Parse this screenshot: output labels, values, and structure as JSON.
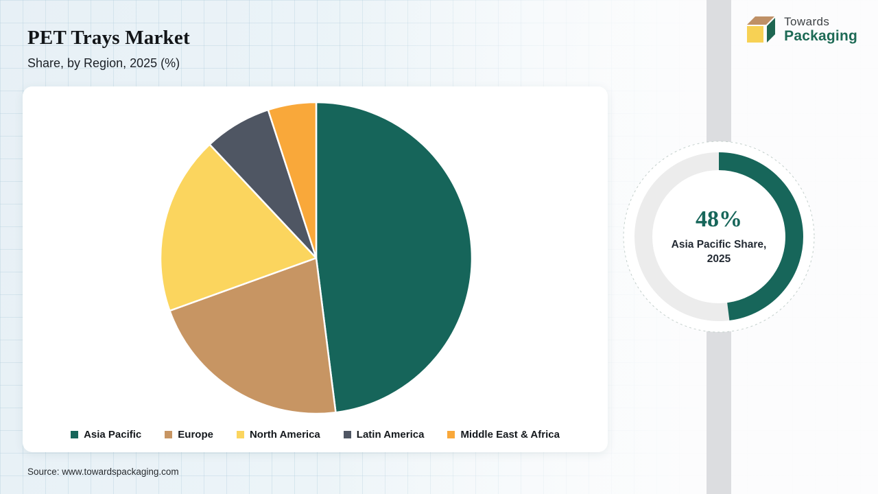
{
  "header": {
    "title": "PET Trays Market",
    "subtitle": "Share, by Region, 2025 (%)"
  },
  "logo": {
    "line1": "Towards",
    "line2": "Packaging",
    "box_colors": {
      "top": "#bf9066",
      "front": "#f7d154",
      "side": "#1e6651"
    }
  },
  "chart_data": {
    "type": "pie",
    "title": "PET Trays Market — Share, by Region, 2025 (%)",
    "labels": [
      "Asia Pacific",
      "Europe",
      "North America",
      "Latin America",
      "Middle East & Africa"
    ],
    "values": [
      48,
      21.5,
      18.5,
      7,
      5
    ],
    "colors": [
      "#16655a",
      "#c79563",
      "#fbd55e",
      "#4f5663",
      "#f9a83a"
    ],
    "start_angle_deg": 0,
    "direction": "clockwise",
    "legend_position": "bottom",
    "separator_color": "#ffffff"
  },
  "highlight_donut": {
    "value": 48,
    "value_label": "48%",
    "caption_line1": "Asia Pacific Share,",
    "caption_line2": "2025",
    "arc_color": "#17665a",
    "track_color": "#ececec",
    "dashed_ring_color": "#c3cfcb"
  },
  "source": {
    "text": "Source: www.towardspackaging.com"
  },
  "theme": {
    "strip_color": "#dcdde0",
    "background_left": "#e7f0f6",
    "background_right": "#fbfcfd",
    "card_background": "#ffffff"
  }
}
